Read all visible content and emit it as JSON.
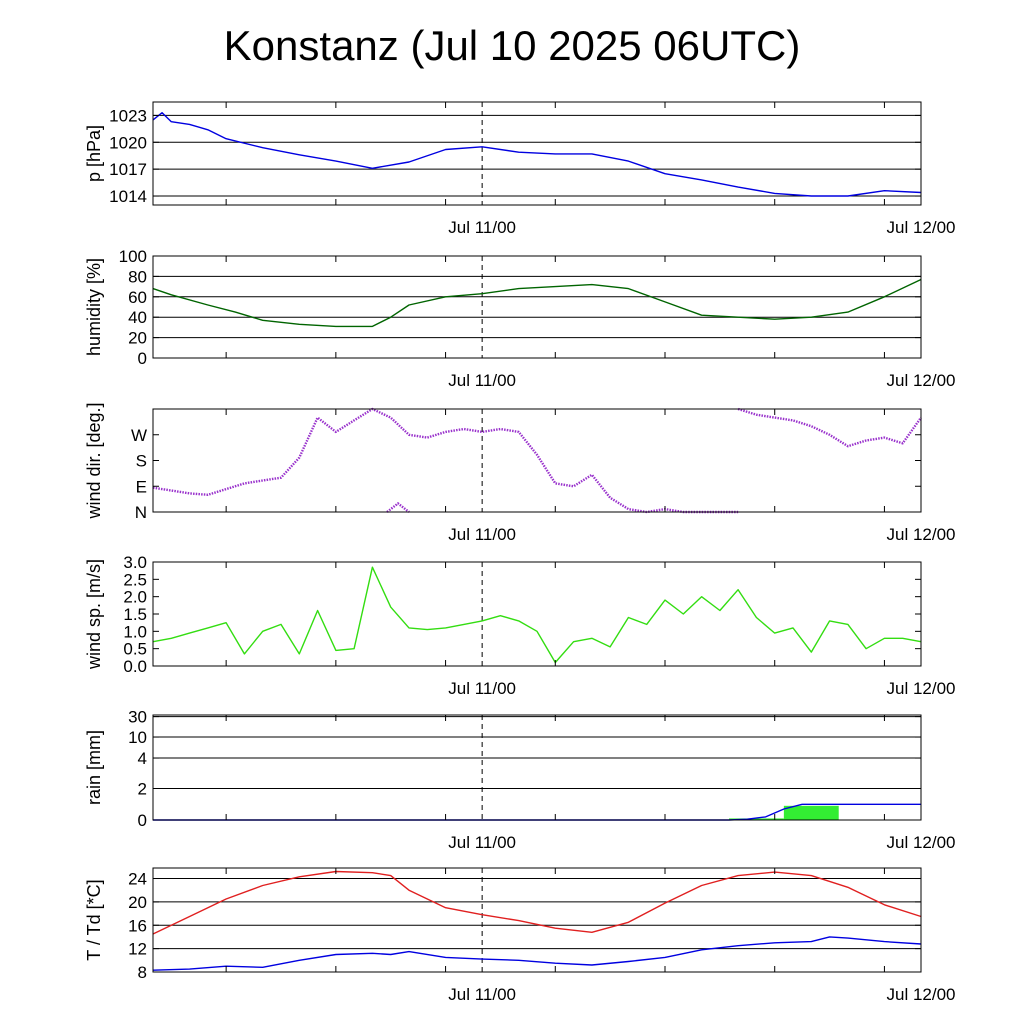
{
  "title": "Konstanz (Jul 10 2025 06UTC)",
  "x_tick_labels": [
    "Jul 11/00",
    "Jul 12/00"
  ],
  "chart_data": [
    {
      "type": "line",
      "ylabel": "p [hPa]",
      "ylim": [
        1013,
        1024.5
      ],
      "yticks": [
        1014,
        1017,
        1020,
        1023
      ],
      "ytick_labels": [
        "1014",
        "1017",
        "1020",
        "1023"
      ],
      "grid": true,
      "series": [
        {
          "color": "#0000e0",
          "x": [
            0,
            0.5,
            1,
            2,
            3,
            4,
            6,
            8,
            10,
            12,
            14,
            16,
            18,
            20,
            22,
            24,
            26,
            28,
            30,
            32,
            34,
            36,
            38,
            40,
            42
          ],
          "y": [
            1022.5,
            1023.3,
            1022.3,
            1022.0,
            1021.4,
            1020.4,
            1019.4,
            1018.6,
            1017.9,
            1017.1,
            1017.8,
            1019.2,
            1019.5,
            1018.9,
            1018.7,
            1018.7,
            1017.9,
            1016.5,
            1015.8,
            1015.0,
            1014.3,
            1014.0,
            1014.0,
            1014.6,
            1014.4
          ]
        }
      ]
    },
    {
      "type": "line",
      "ylabel": "humidity [%]",
      "ylim": [
        0,
        100
      ],
      "yticks": [
        0,
        20,
        40,
        60,
        80,
        100
      ],
      "ytick_labels": [
        "0",
        "20",
        "40",
        "60",
        "80",
        "100"
      ],
      "grid": true,
      "series": [
        {
          "color": "#006400",
          "x": [
            0,
            1,
            3,
            4.5,
            6,
            8,
            10,
            12,
            13,
            14,
            16,
            18,
            20,
            22,
            24,
            26,
            28,
            30,
            32,
            34,
            36,
            38,
            40,
            42
          ],
          "y": [
            68,
            62,
            52,
            45,
            37,
            33,
            31,
            31,
            40,
            52,
            60,
            63,
            68,
            70,
            72,
            68,
            55,
            42,
            40,
            38,
            40,
            45,
            60,
            77
          ]
        }
      ]
    },
    {
      "type": "scatter",
      "ylabel": "wind dir. [deg.]",
      "ylim": [
        0,
        360
      ],
      "yticks": [
        0,
        90,
        180,
        270
      ],
      "ytick_labels": [
        "N",
        "E",
        "S",
        "W"
      ],
      "grid": false,
      "series": [
        {
          "color": "#9932cc",
          "segments": [
            {
              "x": [
                0,
                1,
                2,
                3,
                4,
                5,
                6,
                7,
                8,
                9,
                10,
                11,
                12,
                13,
                14,
                15,
                16,
                17,
                18,
                19,
                20,
                21,
                22,
                23,
                24,
                25,
                26,
                27,
                28,
                29,
                30,
                31,
                32
              ],
              "y": [
                85,
                75,
                65,
                60,
                80,
                100,
                110,
                120,
                190,
                330,
                280,
                320,
                360,
                330,
                270,
                260,
                280,
                290,
                280,
                290,
                280,
                200,
                100,
                90,
                130,
                50,
                10,
                0,
                10,
                0,
                0,
                0,
                0
              ]
            },
            {
              "x": [
                12.8,
                13.4,
                14
              ],
              "y": [
                0,
                30,
                0
              ]
            },
            {
              "x": [
                32,
                33,
                34,
                35,
                36,
                37,
                38,
                39,
                40,
                41,
                42
              ],
              "y": [
                360,
                340,
                330,
                320,
                300,
                270,
                230,
                250,
                260,
                240,
                330
              ]
            }
          ]
        }
      ]
    },
    {
      "type": "line",
      "ylabel": "wind sp. [m/s]",
      "ylim": [
        0,
        3.0
      ],
      "yticks": [
        0.0,
        0.5,
        1.0,
        1.5,
        2.0,
        2.5,
        3.0
      ],
      "ytick_labels": [
        "0.0",
        "0.5",
        "1.0",
        "1.5",
        "2.0",
        "2.5",
        "3.0"
      ],
      "grid": false,
      "series": [
        {
          "color": "#33dd11",
          "x": [
            0,
            1,
            2,
            3,
            4,
            5,
            6,
            7,
            8,
            9,
            10,
            11,
            12,
            13,
            14,
            15,
            16,
            17,
            18,
            19,
            20,
            21,
            22,
            23,
            24,
            25,
            26,
            27,
            28,
            29,
            30,
            31,
            32,
            33,
            34,
            35,
            36,
            37,
            38,
            39,
            40,
            41,
            42
          ],
          "y": [
            0.7,
            0.8,
            0.95,
            1.1,
            1.25,
            0.35,
            1.0,
            1.2,
            0.35,
            1.6,
            0.45,
            0.5,
            2.85,
            1.7,
            1.1,
            1.05,
            1.1,
            1.2,
            1.3,
            1.45,
            1.3,
            1.0,
            0.1,
            0.7,
            0.8,
            0.55,
            1.4,
            1.2,
            1.9,
            1.5,
            2.0,
            1.6,
            2.2,
            1.4,
            0.95,
            1.1,
            0.4,
            1.3,
            1.2,
            0.5,
            0.8,
            0.8,
            0.7
          ]
        }
      ]
    },
    {
      "type": "area",
      "ylabel": "rain [mm]",
      "ylim": [
        0,
        30
      ],
      "yticks": [
        0,
        2,
        4,
        10,
        30
      ],
      "ytick_labels": [
        "0",
        "2",
        "4",
        "10",
        "30"
      ],
      "grid": true,
      "bars": {
        "color": "#33ee33",
        "x_start": [
          31.5,
          34.5
        ],
        "x_end": [
          34.5,
          37.5
        ],
        "values": [
          0.1,
          0.9
        ]
      },
      "series": [
        {
          "color": "#0000e0",
          "x": [
            0,
            31.5,
            32.5,
            33.5,
            34.5,
            35.5,
            36.5,
            42
          ],
          "y": [
            0,
            0,
            0.05,
            0.2,
            0.7,
            1.0,
            1.0,
            1.0
          ]
        }
      ]
    },
    {
      "type": "line",
      "ylabel": "T / Td [*C]",
      "ylim": [
        8,
        25.8
      ],
      "yticks": [
        8,
        12,
        16,
        20,
        24
      ],
      "ytick_labels": [
        "8",
        "12",
        "16",
        "20",
        "24"
      ],
      "grid": true,
      "series": [
        {
          "color": "#e02020",
          "x": [
            0,
            2,
            4,
            6,
            8,
            10,
            12,
            13,
            14,
            16,
            18,
            20,
            22,
            24,
            26,
            28,
            30,
            32,
            34,
            36,
            38,
            40,
            42
          ],
          "y": [
            14.5,
            17.5,
            20.5,
            22.8,
            24.3,
            25.2,
            25.0,
            24.5,
            22.0,
            19.0,
            17.8,
            16.8,
            15.5,
            14.8,
            16.5,
            19.8,
            22.8,
            24.5,
            25.1,
            24.5,
            22.5,
            19.5,
            17.5
          ]
        },
        {
          "color": "#0000e0",
          "x": [
            0,
            2,
            4,
            6,
            8,
            10,
            12,
            13,
            14,
            16,
            18,
            20,
            22,
            24,
            26,
            28,
            30,
            32,
            34,
            36,
            37,
            38,
            40,
            42
          ],
          "y": [
            8.3,
            8.5,
            9.0,
            8.8,
            10.0,
            11.0,
            11.2,
            11.0,
            11.5,
            10.5,
            10.2,
            10.0,
            9.5,
            9.2,
            9.8,
            10.5,
            11.8,
            12.5,
            13.0,
            13.2,
            14.0,
            13.8,
            13.2,
            12.8
          ]
        }
      ]
    }
  ]
}
